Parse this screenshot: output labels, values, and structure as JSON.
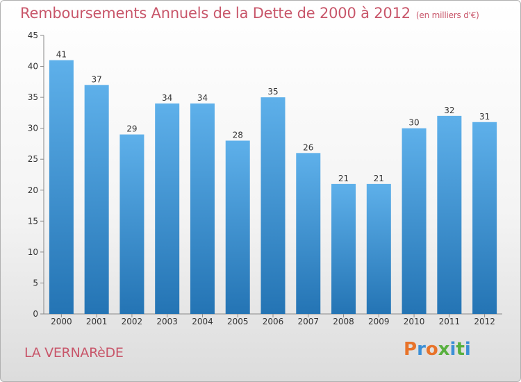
{
  "title": "Remboursements Annuels de la Dette de 2000 à 2012",
  "unit": "(en milliers d'€)",
  "commune": "LA VERNARèDE",
  "logo": "Proxiti",
  "chart_data": {
    "type": "bar",
    "categories": [
      "2000",
      "2001",
      "2002",
      "2003",
      "2004",
      "2005",
      "2006",
      "2007",
      "2008",
      "2009",
      "2010",
      "2011",
      "2012"
    ],
    "values": [
      41,
      37,
      29,
      34,
      34,
      28,
      35,
      26,
      21,
      21,
      30,
      32,
      31
    ],
    "ylim": [
      0,
      45
    ],
    "yticks": [
      0,
      5,
      10,
      15,
      20,
      25,
      30,
      35,
      40,
      45
    ],
    "grid": false,
    "colors": {
      "bar_light": "#5eb0ea",
      "bar_dark": "#2474b4",
      "text_accent": "#c8566a"
    }
  }
}
